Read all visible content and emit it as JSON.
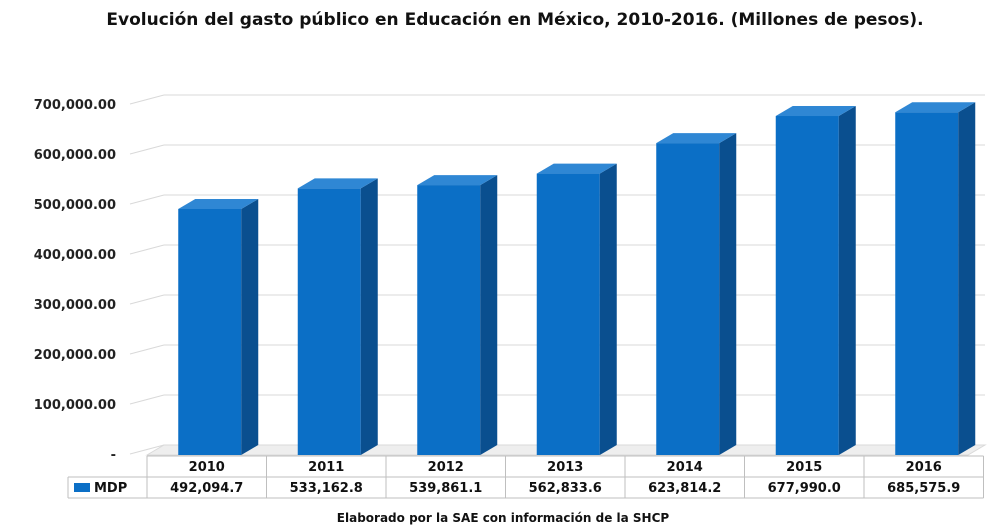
{
  "chart_data": {
    "type": "bar",
    "title": "Evolución del gasto público en Educación en México, 2010-2016. (Millones de pesos).",
    "categories": [
      "2010",
      "2011",
      "2012",
      "2013",
      "2014",
      "2015",
      "2016"
    ],
    "series": [
      {
        "name": "MDP",
        "values": [
          492094.7,
          533162.8,
          539861.1,
          562833.6,
          623814.2,
          677990.0,
          685575.9
        ],
        "labels": [
          "492,094.7",
          "533,162.8",
          "539,861.1",
          "562,833.6",
          "623,814.2",
          "677,990.0",
          "685,575.9"
        ]
      }
    ],
    "yticks": [
      0,
      100000,
      200000,
      300000,
      400000,
      500000,
      600000,
      700000
    ],
    "ytick_labels": [
      "-",
      "100,000.00",
      "200,000.00",
      "300,000.00",
      "400,000.00",
      "500,000.00",
      "600,000.00",
      "700,000.00"
    ],
    "ylim": [
      0,
      700000
    ],
    "grid": true,
    "legend": "data-table",
    "bar_color": "#0b6fc6",
    "bar_side_color": "#0a4f8f",
    "bar_top_color": "#2f87d4"
  },
  "source_note": "Elaborado por la SAE con información de la SHCP"
}
